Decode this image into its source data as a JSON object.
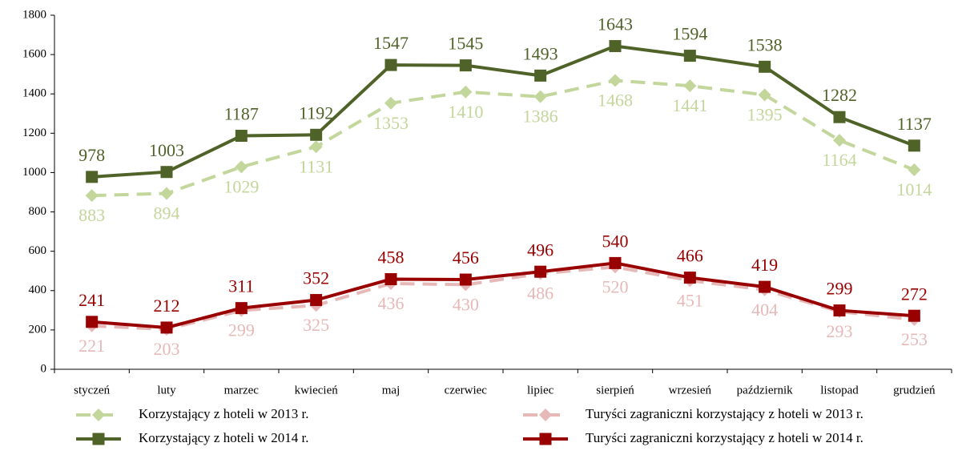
{
  "chart_data": {
    "type": "line",
    "categories": [
      "styczeń",
      "luty",
      "marzec",
      "kwiecień",
      "maj",
      "czerwiec",
      "lipiec",
      "sierpień",
      "wrzesień",
      "październik",
      "listopad",
      "grudzień"
    ],
    "ylim": [
      0,
      1800
    ],
    "yticks": [
      0,
      200,
      400,
      600,
      800,
      1000,
      1200,
      1400,
      1600,
      1800
    ],
    "grid": false,
    "legend": "bottom",
    "series": [
      {
        "name": "Korzystający z hoteli w 2013 r.",
        "color": "#c3d69b",
        "dashed": true,
        "marker": "diamond",
        "label_position": "below",
        "values": [
          883,
          894,
          1029,
          1131,
          1353,
          1410,
          1386,
          1468,
          1441,
          1395,
          1164,
          1014
        ]
      },
      {
        "name": "Korzystający z hoteli w 2014 r.",
        "color": "#4f6228",
        "dashed": false,
        "marker": "square",
        "label_position": "above",
        "values": [
          978,
          1003,
          1187,
          1192,
          1547,
          1545,
          1493,
          1643,
          1594,
          1538,
          1282,
          1137
        ]
      },
      {
        "name": "Turyści zagraniczni korzystający z hoteli w 2013 r.",
        "color": "#e6b9b8",
        "dashed": true,
        "marker": "diamond",
        "label_position": "below",
        "values": [
          221,
          203,
          299,
          325,
          436,
          430,
          486,
          520,
          451,
          404,
          293,
          253
        ]
      },
      {
        "name": "Turyści zagraniczni korzystający z hoteli w 2014 r.",
        "color": "#990000",
        "dashed": false,
        "marker": "square",
        "label_position": "above",
        "values": [
          241,
          212,
          311,
          352,
          458,
          456,
          496,
          540,
          466,
          419,
          299,
          272
        ]
      }
    ]
  }
}
